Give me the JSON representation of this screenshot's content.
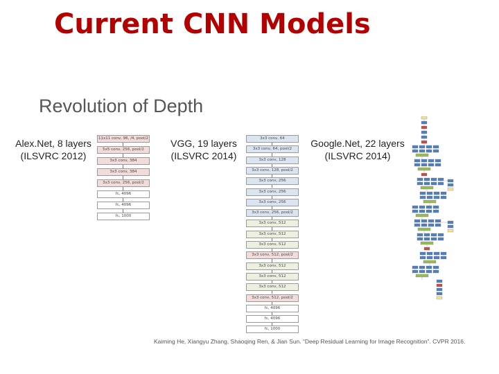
{
  "title": "Current  CNN Models",
  "subtitle": "Revolution of Depth",
  "nets": {
    "alexnet": {
      "name": "Alex.Net, 8 layers",
      "sub": "(ILSVRC 2012)",
      "layers": [
        {
          "text": "11x11 conv, 96, /4, pool/2",
          "color": "#f2dcdb"
        },
        {
          "text": "5x5 conv, 256, pool/2",
          "color": "#f2dcdb"
        },
        {
          "text": "3x3 conv, 384",
          "color": "#f2dcdb"
        },
        {
          "text": "3x3 conv, 384",
          "color": "#f2dcdb"
        },
        {
          "text": "3x3 conv, 256, pool/2",
          "color": "#f2dcdb"
        },
        {
          "text": "fc, 4096",
          "color": "#ffffff"
        },
        {
          "text": "fc, 4096",
          "color": "#ffffff"
        },
        {
          "text": "fc, 1000",
          "color": "#ffffff"
        }
      ]
    },
    "vgg": {
      "name": "VGG, 19 layers",
      "sub": "(ILSVRC 2014)",
      "layers": [
        {
          "text": "3x3 conv, 64",
          "color": "#dbe5f1"
        },
        {
          "text": "3x3 conv, 64, pool/2",
          "color": "#dbe5f1"
        },
        {
          "text": "3x3 conv, 128",
          "color": "#dbe5f1"
        },
        {
          "text": "3x3 conv, 128, pool/2",
          "color": "#dbe5f1"
        },
        {
          "text": "3x3 conv, 256",
          "color": "#dbe5f1"
        },
        {
          "text": "3x3 conv, 256",
          "color": "#dbe5f1"
        },
        {
          "text": "3x3 conv, 256",
          "color": "#dbe5f1"
        },
        {
          "text": "3x3 conv, 256, pool/2",
          "color": "#dbe5f1"
        },
        {
          "text": "3x3 conv, 512",
          "color": "#ebf1de"
        },
        {
          "text": "3x3 conv, 512",
          "color": "#ebf1de"
        },
        {
          "text": "3x3 conv, 512",
          "color": "#ebf1de"
        },
        {
          "text": "3x3 conv, 512, pool/2",
          "color": "#f2dcdb"
        },
        {
          "text": "3x3 conv, 512",
          "color": "#ebf1de"
        },
        {
          "text": "3x3 conv, 512",
          "color": "#ebf1de"
        },
        {
          "text": "3x3 conv, 512",
          "color": "#ebf1de"
        },
        {
          "text": "3x3 conv, 512, pool/2",
          "color": "#f2dcdb"
        },
        {
          "text": "fc, 4096",
          "color": "#ffffff"
        },
        {
          "text": "fc, 4096",
          "color": "#ffffff"
        },
        {
          "text": "fc, 1000",
          "color": "#ffffff"
        }
      ]
    },
    "googlenet": {
      "name": "Google.Net, 22 layers",
      "sub": "(ILSVRC 2014)"
    }
  },
  "citation": "Kaiming He, Xiangyu Zhang, Shaoqing Ren, & Jian Sun. “Deep Residual Learning for Image Recognition”. CVPR 2016.",
  "colors": {
    "title": "#b30000",
    "inception_blue": "#4f81bd",
    "inception_green": "#9bbb59",
    "inception_red": "#c0504d",
    "inception_yellow": "#f2e29b"
  }
}
